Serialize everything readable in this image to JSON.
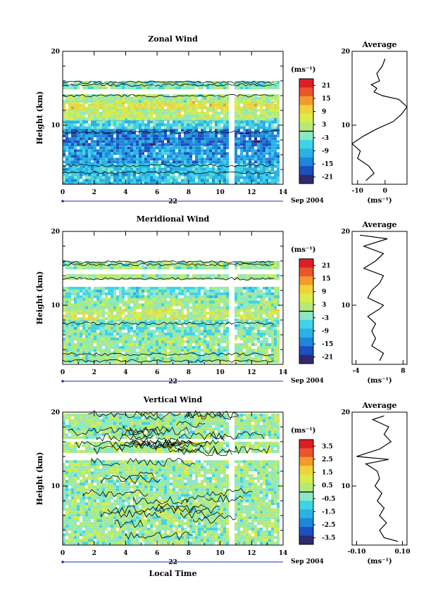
{
  "chart_data": [
    {
      "type": "heatmap",
      "title": "Zonal Wind",
      "ylabel": "Height (km)",
      "x_ticks": [
        "0",
        "2",
        "4",
        "6",
        "8",
        "10",
        "12",
        "14"
      ],
      "y_ticks": [
        "20",
        "10"
      ],
      "xlim": [
        0,
        14
      ],
      "ylim": [
        2,
        20
      ],
      "date_day": "22",
      "date_label": "Sep 2004",
      "colorbar": {
        "unit": "(ms⁻¹)",
        "ticks": [
          "21",
          "15",
          "9",
          "3",
          "-3",
          "-9",
          "-15",
          "-21"
        ],
        "values": [
          21,
          15,
          9,
          3,
          -3,
          -9,
          -15,
          -21
        ],
        "range": [
          -24,
          24
        ]
      },
      "bands": [
        {
          "y0": 2.3,
          "y1": 5,
          "v": -8
        },
        {
          "y0": 5,
          "y1": 7.5,
          "v": -12
        },
        {
          "y0": 7.5,
          "y1": 9.5,
          "v": -15
        },
        {
          "y0": 9.5,
          "y1": 11,
          "v": -6
        },
        {
          "y0": 11,
          "y1": 12.2,
          "v": 3
        },
        {
          "y0": 12.2,
          "y1": 13.3,
          "v": 7
        },
        {
          "y0": 13.3,
          "y1": 14.2,
          "v": 1
        },
        {
          "y0": 15.2,
          "y1": 16,
          "v": -2
        }
      ],
      "profile": {
        "title": "Average",
        "unit": "(ms⁻¹)",
        "x_ticks": [
          "-10",
          "0"
        ],
        "x_tick_values": [
          -10,
          0
        ],
        "xlim": [
          -12,
          8
        ],
        "y_ticks": [
          "20",
          "10"
        ],
        "points": [
          [
            -7,
            2.5
          ],
          [
            -4,
            3.5
          ],
          [
            -6,
            4.5
          ],
          [
            -10,
            5.5
          ],
          [
            -9,
            6.5
          ],
          [
            -12,
            7.5
          ],
          [
            -8,
            8.5
          ],
          [
            -3,
            9.5
          ],
          [
            3,
            10.5
          ],
          [
            6,
            11.5
          ],
          [
            8,
            12.5
          ],
          [
            5,
            13.5
          ],
          [
            -1,
            14
          ],
          [
            -4,
            14.5
          ],
          [
            -3,
            15
          ],
          [
            -5,
            15.5
          ],
          [
            -2,
            16
          ],
          [
            -3,
            17
          ],
          [
            -1,
            18
          ],
          [
            0,
            19
          ]
        ]
      }
    },
    {
      "type": "heatmap",
      "title": "Meridional Wind",
      "ylabel": "Height (km)",
      "x_ticks": [
        "0",
        "2",
        "4",
        "6",
        "8",
        "10",
        "12",
        "14"
      ],
      "y_ticks": [
        "20",
        "10"
      ],
      "xlim": [
        0,
        14
      ],
      "ylim": [
        2,
        20
      ],
      "date_day": "22",
      "date_label": "Sep 2004",
      "colorbar": {
        "unit": "(ms⁻¹)",
        "ticks": [
          "21",
          "15",
          "9",
          "3",
          "-3",
          "-9",
          "-15",
          "-21"
        ],
        "values": [
          21,
          15,
          9,
          3,
          -3,
          -9,
          -15,
          -21
        ],
        "range": [
          -24,
          24
        ]
      },
      "bands": [
        {
          "y0": 2.3,
          "y1": 6,
          "v": 0
        },
        {
          "y0": 6,
          "y1": 8.2,
          "v": -3
        },
        {
          "y0": 8.2,
          "y1": 9.5,
          "v": 4
        },
        {
          "y0": 9.5,
          "y1": 11,
          "v": 0
        },
        {
          "y0": 11,
          "y1": 12.5,
          "v": -4
        },
        {
          "y0": 13.5,
          "y1": 14.2,
          "v": 1
        },
        {
          "y0": 15.2,
          "y1": 16,
          "v": 0
        }
      ],
      "profile": {
        "title": "Average",
        "unit": "(ms⁻¹)",
        "x_ticks": [
          "-4",
          "8"
        ],
        "x_tick_values": [
          -4,
          8
        ],
        "xlim": [
          -5,
          9
        ],
        "y_ticks": [
          "20",
          "10"
        ],
        "points": [
          [
            2,
            2.5
          ],
          [
            3,
            3.5
          ],
          [
            0,
            4.5
          ],
          [
            1,
            5.5
          ],
          [
            0,
            6.5
          ],
          [
            1,
            7.5
          ],
          [
            -1,
            8.5
          ],
          [
            2,
            9.5
          ],
          [
            3,
            10
          ],
          [
            1,
            10.5
          ],
          [
            -1,
            11
          ],
          [
            0,
            12
          ],
          [
            2,
            13
          ],
          [
            3,
            14
          ],
          [
            -2,
            15
          ],
          [
            1,
            16
          ],
          [
            3,
            17
          ],
          [
            -2,
            18
          ],
          [
            4,
            19
          ],
          [
            -3,
            19.5
          ]
        ]
      }
    },
    {
      "type": "heatmap",
      "title": "Vertical Wind",
      "ylabel": "Height (km)",
      "xlabel": "Local Time",
      "x_ticks": [
        "0",
        "2",
        "4",
        "6",
        "8",
        "10",
        "12",
        "14"
      ],
      "y_ticks": [
        "20",
        "10"
      ],
      "xlim": [
        0,
        14
      ],
      "ylim": [
        2,
        20
      ],
      "date_day": "22",
      "date_label": "Sep 2004",
      "colorbar": {
        "unit": "(ms⁻¹)",
        "ticks": [
          "3.5",
          "2.5",
          "1.5",
          "0.5",
          "-0.5",
          "-1.5",
          "-2.5",
          "-3.5"
        ],
        "values": [
          3.5,
          2.5,
          1.5,
          0.5,
          -0.5,
          -1.5,
          -2.5,
          -3.5
        ],
        "range": [
          -4,
          4
        ]
      },
      "bands": [
        {
          "y0": 2.3,
          "y1": 13.5,
          "v": 0
        },
        {
          "y0": 14.5,
          "y1": 16,
          "v": 0.2
        },
        {
          "y0": 16.5,
          "y1": 19.8,
          "v": 0
        }
      ],
      "profile": {
        "title": "Average",
        "unit": "(ms⁻¹)",
        "x_ticks": [
          "-0.10",
          "0.10"
        ],
        "x_tick_values": [
          -0.1,
          0.1
        ],
        "xlim": [
          -0.12,
          0.12
        ],
        "y_ticks": [
          "20",
          "10"
        ],
        "points": [
          [
            0.08,
            2.5
          ],
          [
            0.02,
            3
          ],
          [
            0.0,
            4
          ],
          [
            0.03,
            5
          ],
          [
            0.0,
            6
          ],
          [
            0.02,
            7
          ],
          [
            -0.01,
            8
          ],
          [
            0.01,
            9
          ],
          [
            -0.02,
            10
          ],
          [
            0.0,
            11
          ],
          [
            -0.01,
            12
          ],
          [
            -0.06,
            13
          ],
          [
            0.04,
            13.6
          ],
          [
            -0.1,
            14
          ],
          [
            0.0,
            15
          ],
          [
            0.05,
            16
          ],
          [
            0.02,
            17
          ],
          [
            0.04,
            18
          ],
          [
            -0.03,
            19
          ],
          [
            0.02,
            19.5
          ]
        ]
      }
    }
  ]
}
